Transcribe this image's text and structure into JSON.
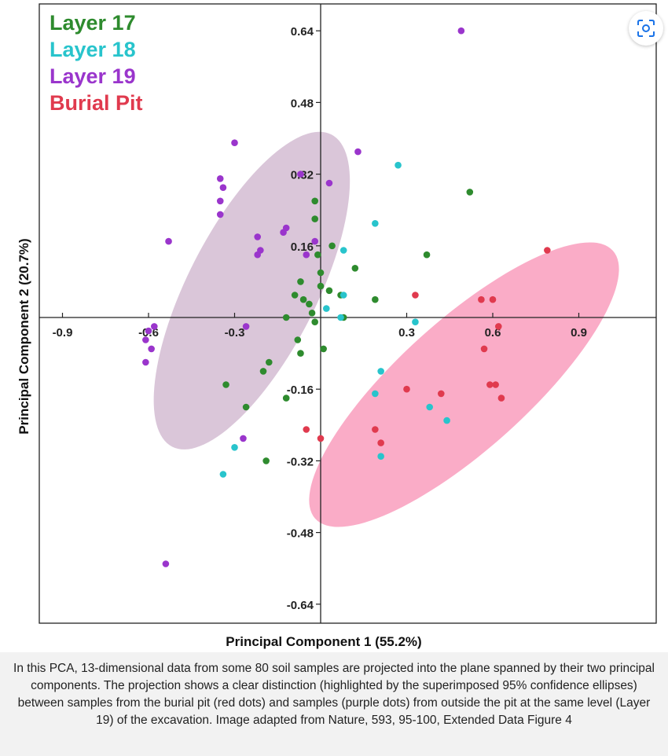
{
  "chart_data": {
    "type": "scatter",
    "xlabel": "Principal Component 1 (55.2%)",
    "ylabel": "Principal Component 2 (20.7%)",
    "xlim": [
      -1.0,
      1.2
    ],
    "ylim": [
      -0.7,
      0.7
    ],
    "x_ticks": [
      -0.9,
      -0.6,
      -0.3,
      0.3,
      0.6,
      0.9
    ],
    "x_tick_labels": [
      "-0.9",
      "-0.6",
      "-0.3",
      "0.3",
      "0.6",
      "0.9"
    ],
    "y_ticks": [
      0.64,
      0.48,
      0.32,
      0.16,
      -0.16,
      -0.32,
      -0.48,
      -0.64
    ],
    "y_tick_labels": [
      "0.64",
      "0.48",
      "0.32",
      "0.16",
      "-0.16",
      "-0.32",
      "-0.48",
      "-0.64"
    ],
    "grid": false,
    "legend_position": "top-left",
    "series": [
      {
        "name": "Layer 17",
        "color": "#2e8b2e",
        "points": [
          [
            -0.02,
            0.26
          ],
          [
            -0.02,
            0.22
          ],
          [
            0.04,
            0.16
          ],
          [
            -0.01,
            0.14
          ],
          [
            0.0,
            0.1
          ],
          [
            0.12,
            0.11
          ],
          [
            -0.07,
            0.08
          ],
          [
            0.03,
            0.06
          ],
          [
            -0.09,
            0.05
          ],
          [
            -0.06,
            0.04
          ],
          [
            0.0,
            0.07
          ],
          [
            0.07,
            0.05
          ],
          [
            -0.04,
            0.03
          ],
          [
            -0.12,
            0.0
          ],
          [
            -0.03,
            0.01
          ],
          [
            0.08,
            0.0
          ],
          [
            -0.02,
            -0.01
          ],
          [
            -0.08,
            -0.05
          ],
          [
            0.01,
            -0.07
          ],
          [
            -0.07,
            -0.08
          ],
          [
            -0.18,
            -0.1
          ],
          [
            -0.2,
            -0.12
          ],
          [
            -0.33,
            -0.15
          ],
          [
            -0.26,
            -0.2
          ],
          [
            -0.12,
            -0.18
          ],
          [
            -0.19,
            -0.32
          ],
          [
            0.19,
            0.04
          ],
          [
            0.37,
            0.14
          ],
          [
            0.52,
            0.28
          ]
        ]
      },
      {
        "name": "Layer 18",
        "color": "#28c4cc",
        "points": [
          [
            0.27,
            0.34
          ],
          [
            0.19,
            0.21
          ],
          [
            0.08,
            0.15
          ],
          [
            0.08,
            0.05
          ],
          [
            0.02,
            0.02
          ],
          [
            0.07,
            0.0
          ],
          [
            0.33,
            -0.01
          ],
          [
            0.21,
            -0.12
          ],
          [
            0.19,
            -0.17
          ],
          [
            0.38,
            -0.2
          ],
          [
            0.44,
            -0.23
          ],
          [
            -0.3,
            -0.29
          ],
          [
            -0.34,
            -0.35
          ],
          [
            0.21,
            -0.31
          ]
        ]
      },
      {
        "name": "Layer 19",
        "color": "#9a35cc",
        "points": [
          [
            0.49,
            0.64
          ],
          [
            -0.3,
            0.39
          ],
          [
            0.13,
            0.37
          ],
          [
            -0.07,
            0.32
          ],
          [
            -0.35,
            0.31
          ],
          [
            -0.34,
            0.29
          ],
          [
            0.03,
            0.3
          ],
          [
            -0.35,
            0.26
          ],
          [
            -0.35,
            0.23
          ],
          [
            -0.12,
            0.2
          ],
          [
            -0.13,
            0.19
          ],
          [
            -0.22,
            0.18
          ],
          [
            -0.53,
            0.17
          ],
          [
            -0.02,
            0.17
          ],
          [
            -0.21,
            0.15
          ],
          [
            -0.22,
            0.14
          ],
          [
            -0.05,
            0.14
          ],
          [
            -0.58,
            -0.02
          ],
          [
            -0.6,
            -0.03
          ],
          [
            -0.61,
            -0.05
          ],
          [
            -0.59,
            -0.07
          ],
          [
            -0.61,
            -0.1
          ],
          [
            -0.26,
            -0.02
          ],
          [
            -0.27,
            -0.27
          ],
          [
            -0.54,
            -0.55
          ]
        ]
      },
      {
        "name": "Burial Pit",
        "color": "#e03a4e",
        "points": [
          [
            0.79,
            0.15
          ],
          [
            0.33,
            0.05
          ],
          [
            0.56,
            0.04
          ],
          [
            0.6,
            0.04
          ],
          [
            0.62,
            -0.02
          ],
          [
            0.57,
            -0.07
          ],
          [
            0.59,
            -0.15
          ],
          [
            0.61,
            -0.15
          ],
          [
            0.63,
            -0.18
          ],
          [
            0.3,
            -0.16
          ],
          [
            0.42,
            -0.17
          ],
          [
            0.19,
            -0.25
          ],
          [
            0.21,
            -0.28
          ],
          [
            0.0,
            -0.27
          ],
          [
            -0.05,
            -0.25
          ]
        ]
      }
    ],
    "ellipses": [
      {
        "group": "Layer 19",
        "center": [
          -0.24,
          0.06
        ],
        "semi_axes": [
          0.49,
          0.18
        ],
        "angle_deg": 63,
        "color": "#c6a8c4"
      },
      {
        "group": "Burial Pit",
        "center": [
          0.5,
          -0.15
        ],
        "semi_axes": [
          0.56,
          0.18
        ],
        "angle_deg": 42,
        "color": "#f77fa9"
      }
    ]
  },
  "caption": "In this PCA, 13-dimensional data from some 80 soil samples are projected into the plane spanned by their two principal components. The projection shows a clear distinction (highlighted by the superimposed 95% confidence ellipses) between samples from the burial pit (red dots) and samples (purple dots) from outside the pit at the same level (Layer 19) of the excavation. Image adapted from Nature, 593, 95-100, Extended Data Figure 4",
  "toolbar": {
    "lens_icon": "visual-search-icon"
  }
}
